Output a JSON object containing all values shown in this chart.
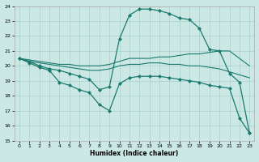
{
  "background_color": "#cce8e5",
  "grid_color": "#aacfcc",
  "line_color": "#1a7a6e",
  "xlabel": "Humidex (Indice chaleur)",
  "xlim_min": -0.5,
  "xlim_max": 23.5,
  "ylim_min": 15,
  "ylim_max": 24,
  "xticks": [
    0,
    1,
    2,
    3,
    4,
    5,
    6,
    7,
    8,
    9,
    10,
    11,
    12,
    13,
    14,
    15,
    16,
    17,
    18,
    19,
    20,
    21,
    22,
    23
  ],
  "yticks": [
    15,
    16,
    17,
    18,
    19,
    20,
    21,
    22,
    23,
    24
  ],
  "s1_x": [
    0,
    1,
    2,
    3,
    4,
    5,
    6,
    7,
    8,
    9,
    10,
    11,
    12,
    13,
    14,
    15,
    16,
    17,
    18,
    19,
    20,
    21,
    22,
    23
  ],
  "s1_y": [
    20.5,
    20.3,
    20.0,
    19.8,
    19.7,
    19.5,
    19.3,
    19.1,
    18.4,
    18.6,
    21.8,
    23.4,
    23.8,
    23.8,
    23.7,
    23.5,
    23.2,
    23.1,
    22.5,
    21.1,
    21.0,
    19.5,
    18.9,
    15.5
  ],
  "s2_x": [
    0,
    1,
    2,
    3,
    4,
    5,
    6,
    7,
    8,
    9,
    10,
    11,
    12,
    13,
    14,
    15,
    16,
    17,
    18,
    19,
    20,
    21,
    22,
    23
  ],
  "s2_y": [
    20.5,
    20.4,
    20.3,
    20.2,
    20.1,
    20.1,
    20.0,
    20.0,
    20.0,
    20.1,
    20.3,
    20.5,
    20.5,
    20.5,
    20.6,
    20.6,
    20.7,
    20.8,
    20.8,
    20.9,
    21.0,
    21.0,
    20.5,
    20.0
  ],
  "s3_x": [
    0,
    1,
    2,
    3,
    4,
    5,
    6,
    7,
    8,
    9,
    10,
    11,
    12,
    13,
    14,
    15,
    16,
    17,
    18,
    19,
    20,
    21,
    22,
    23
  ],
  "s3_y": [
    20.5,
    20.3,
    20.2,
    20.1,
    20.0,
    19.9,
    19.8,
    19.7,
    19.7,
    19.8,
    20.0,
    20.1,
    20.1,
    20.2,
    20.2,
    20.1,
    20.1,
    20.0,
    20.0,
    19.9,
    19.8,
    19.6,
    19.4,
    19.2
  ],
  "s4_x": [
    0,
    1,
    2,
    3,
    4,
    5,
    6,
    7,
    8,
    9,
    10,
    11,
    12,
    13,
    14,
    15,
    16,
    17,
    18,
    19,
    20,
    21,
    22,
    23
  ],
  "s4_y": [
    20.5,
    20.2,
    19.9,
    19.7,
    18.9,
    18.7,
    18.4,
    18.2,
    17.4,
    17.0,
    18.8,
    19.2,
    19.3,
    19.3,
    19.3,
    19.2,
    19.1,
    19.0,
    18.9,
    18.7,
    18.6,
    18.5,
    16.5,
    15.5
  ]
}
